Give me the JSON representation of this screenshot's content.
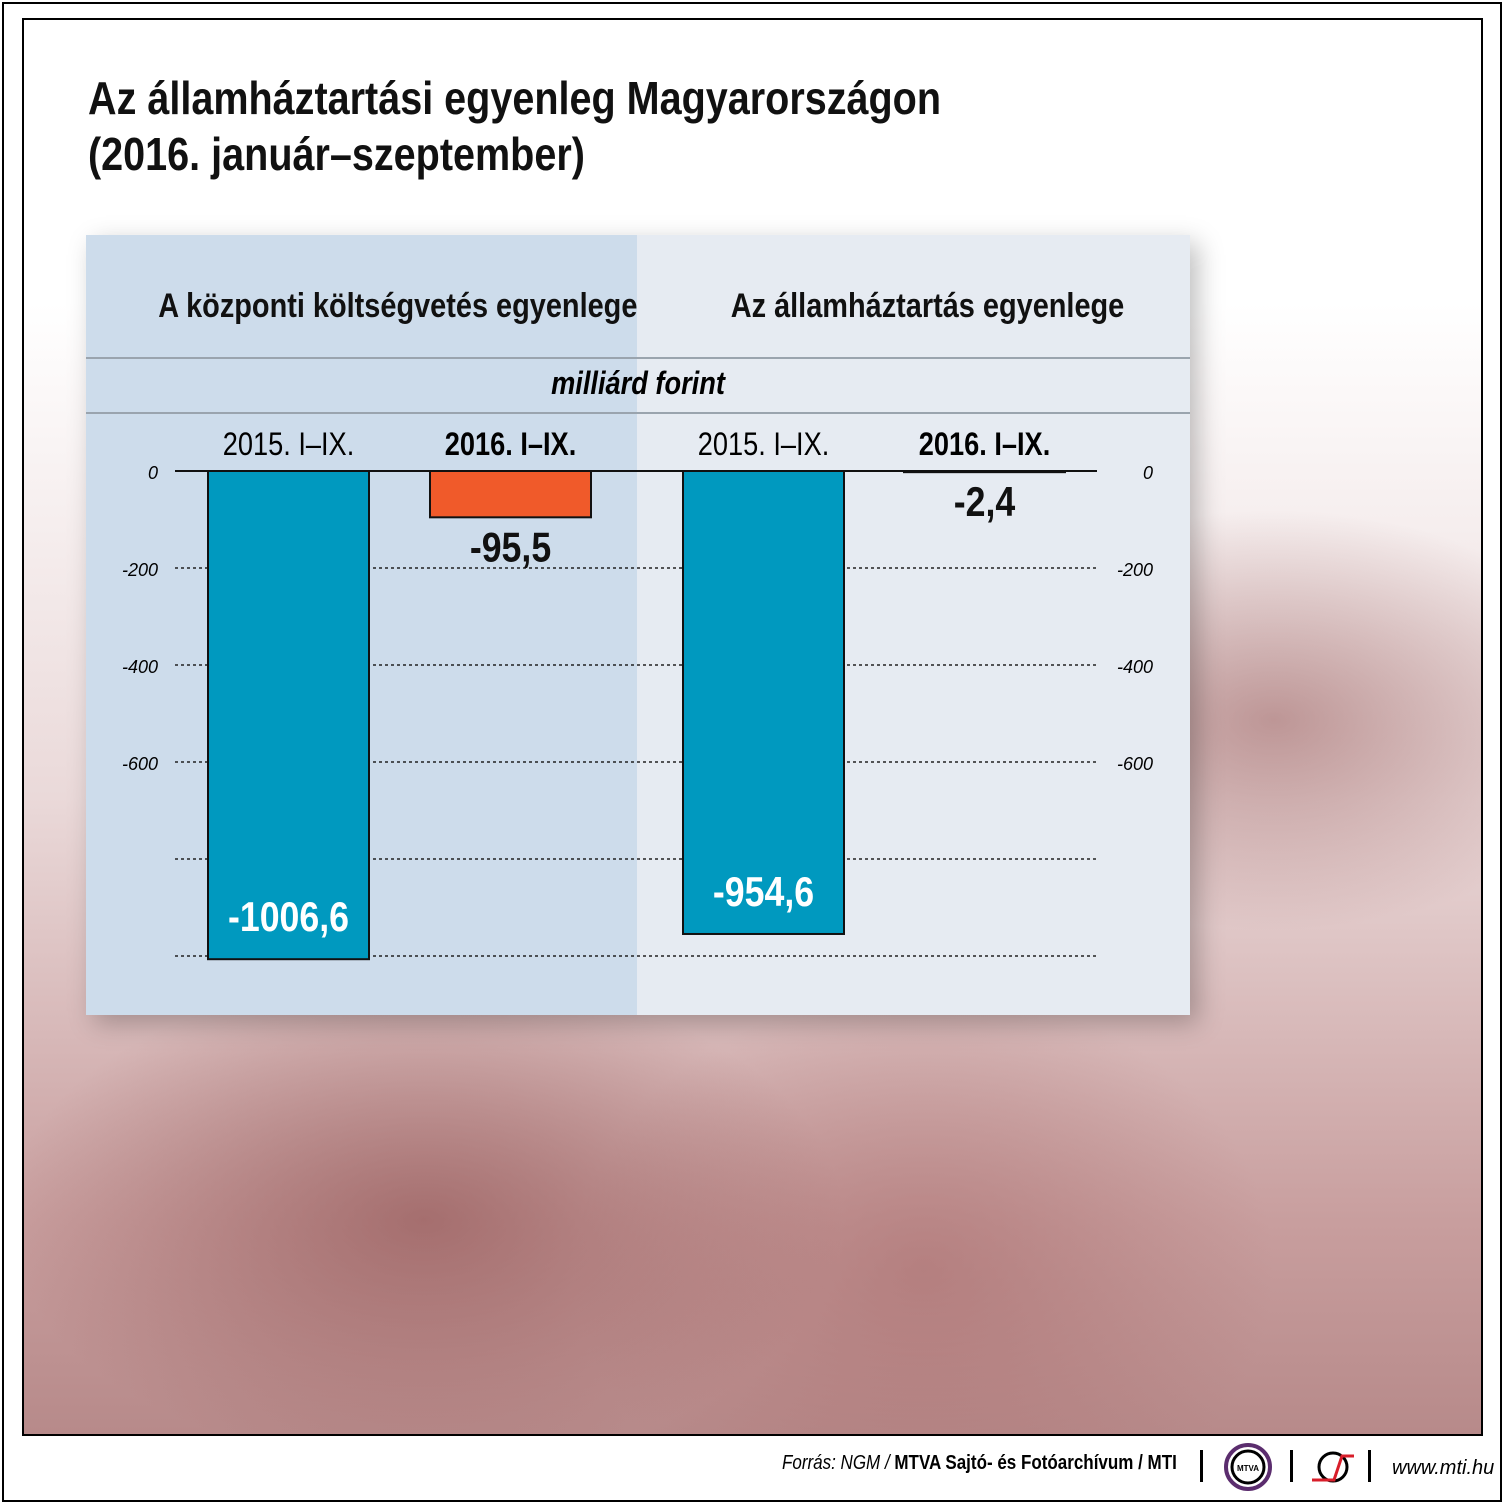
{
  "title_line1": "Az államháztartási egyenleg Magyarországon",
  "title_line2": "(2016. január–szeptember)",
  "unit": "milliárd forint",
  "footer": {
    "source_prefix": "Forrás: NGM /",
    "source_bold": "MTVA Sajtó- és Fotóarchívum / MTI",
    "logo_mtva": "MTVA",
    "url": "www.mti.hu"
  },
  "chart_data": {
    "type": "bar",
    "unit": "milliárd forint",
    "ylim": [
      -1000,
      0
    ],
    "yticks": [
      0,
      -200,
      -400,
      -600,
      -800,
      -1000
    ],
    "ytick_labels": [
      "0",
      "-200",
      "-400",
      "-600"
    ],
    "grid": true,
    "panels": [
      {
        "title": "A központi költségvetés egyenlege",
        "categories": [
          "2015. I–IX.",
          "2016. I–IX."
        ],
        "values": [
          -1006.6,
          -95.5
        ],
        "labels": [
          "-1006,6",
          "-95,5"
        ],
        "colors": [
          "#0099bf",
          "#f05a2a"
        ]
      },
      {
        "title": "Az államháztartás egyenlege",
        "categories": [
          "2015. I–IX.",
          "2016. I–IX."
        ],
        "values": [
          -954.6,
          -2.4
        ],
        "labels": [
          "-954,6",
          "-2,4"
        ],
        "colors": [
          "#0099bf",
          "#f05a2a"
        ]
      }
    ]
  }
}
